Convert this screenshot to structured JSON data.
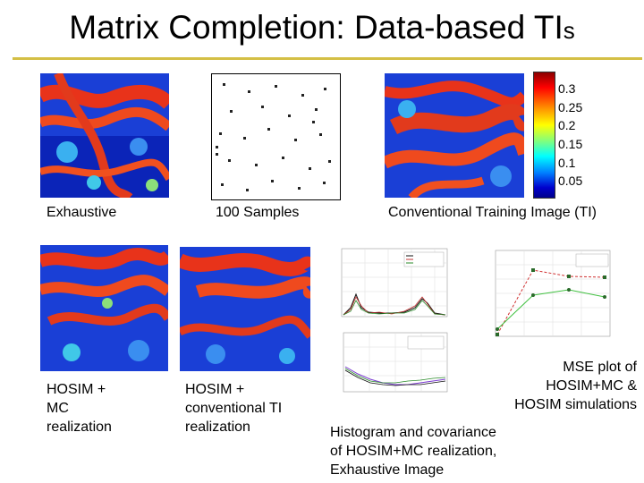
{
  "slide": {
    "title_main": "Matrix Completion: Data-based TI",
    "title_suffix": "s"
  },
  "captions": {
    "exhaustive": "Exhaustive",
    "samples": "100 Samples",
    "conventional_ti": "Conventional Training Image (TI)",
    "hosim_mc": [
      "HOSIM +",
      "MC",
      "realization"
    ],
    "hosim_conv": [
      "HOSIM +",
      "conventional TI",
      "realization"
    ],
    "mse": [
      "MSE plot of",
      "HOSIM+MC &",
      "HOSIM simulations"
    ],
    "hist_cov": [
      "Histogram and covariance",
      "of HOSIM+MC realization,",
      "Exhaustive Image"
    ]
  },
  "colorbar": {
    "ticks": [
      "0.3",
      "0.25",
      "0.2",
      "0.15",
      "0.1",
      "0.05"
    ],
    "colors": [
      "#8b0000",
      "#ff0000",
      "#ff8c00",
      "#ffff00",
      "#7fff7f",
      "#00ffff",
      "#0080ff",
      "#0000cd",
      "#00008b"
    ]
  },
  "colors": {
    "accent_rule": "#d4bf45"
  }
}
